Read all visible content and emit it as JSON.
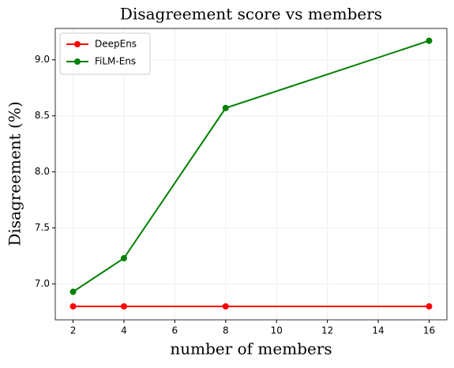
{
  "chart_data": {
    "type": "line",
    "title": "Disagreement score vs members",
    "x_label": "number of members",
    "y_label": "Disagreement (%)",
    "x": [
      2,
      4,
      8,
      16
    ],
    "series": [
      {
        "name": "DeepEns",
        "color": "#ff0000",
        "values": [
          6.8,
          6.8,
          6.8,
          6.8
        ]
      },
      {
        "name": "FiLM-Ens",
        "color": "#008000",
        "values": [
          6.93,
          7.23,
          8.57,
          9.17
        ]
      }
    ],
    "xlim": [
      1.3,
      16.7
    ],
    "xticks": [
      2,
      4,
      6,
      8,
      10,
      12,
      14,
      16
    ],
    "ylim": [
      6.68,
      9.28
    ],
    "yticks": [
      {
        "value": 7,
        "label": "7.0"
      },
      7.5,
      {
        "value": 8,
        "label": "8.0"
      },
      8.5,
      {
        "value": 9,
        "label": "9.0"
      }
    ],
    "grid": true,
    "legend": "upper-left"
  }
}
